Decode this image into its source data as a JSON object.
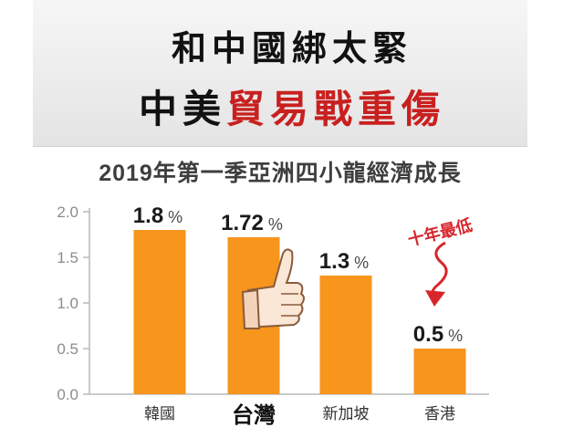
{
  "headline": {
    "line1": "和中國綁太緊",
    "line2_black": "中美",
    "line2_red": "貿易戰重傷"
  },
  "chart_data": {
    "type": "bar",
    "title": "2019年第一季亞洲四小龍經濟成長",
    "categories": [
      "韓國",
      "台灣",
      "新加坡",
      "香港"
    ],
    "values": [
      1.8,
      1.72,
      1.3,
      0.5
    ],
    "value_labels": [
      "1.8",
      "1.72",
      "1.3",
      "0.5"
    ],
    "unit": "%",
    "ylim": [
      0,
      2.0
    ],
    "yticks": [
      "0.0",
      "0.5",
      "1.0",
      "1.5",
      "2.0"
    ],
    "grid": false,
    "highlight_category": "台灣",
    "bar_color": "#f7951d",
    "annotation": {
      "text": "十年最低",
      "target": "香港",
      "color": "#d7262b"
    }
  }
}
